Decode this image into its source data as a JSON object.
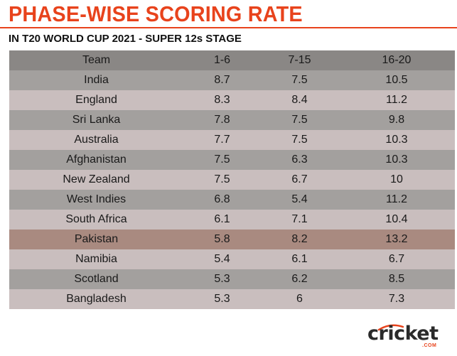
{
  "title": "PHASE-WISE SCORING RATE",
  "subtitle": "IN T20 WORLD CUP 2021 - SUPER 12s STAGE",
  "colors": {
    "accent": "#e8431c",
    "header_row": "#8a8785",
    "row_dark": "#a3a09e",
    "row_light": "#c9bebe",
    "highlight_row": "#a98a80"
  },
  "logo": {
    "word": "cricket",
    "suffix": ".COM"
  },
  "chart_data": {
    "type": "table",
    "title": "PHASE-WISE SCORING RATE",
    "subtitle": "IN T20 WORLD CUP 2021 - SUPER 12s STAGE",
    "columns": [
      "Team",
      "1-6",
      "7-15",
      "16-20"
    ],
    "rows": [
      [
        "India",
        "8.7",
        "7.5",
        "10.5"
      ],
      [
        "England",
        "8.3",
        "8.4",
        "11.2"
      ],
      [
        "Sri Lanka",
        "7.8",
        "7.5",
        "9.8"
      ],
      [
        "Australia",
        "7.7",
        "7.5",
        "10.3"
      ],
      [
        "Afghanistan",
        "7.5",
        "6.3",
        "10.3"
      ],
      [
        "New Zealand",
        "7.5",
        "6.7",
        "10"
      ],
      [
        "West Indies",
        "6.8",
        "5.4",
        "11.2"
      ],
      [
        "South Africa",
        "6.1",
        "7.1",
        "10.4"
      ],
      [
        "Pakistan",
        "5.8",
        "8.2",
        "13.2"
      ],
      [
        "Namibia",
        "5.4",
        "6.1",
        "6.7"
      ],
      [
        "Scotland",
        "5.3",
        "6.2",
        "8.5"
      ],
      [
        "Bangladesh",
        "5.3",
        "6",
        "7.3"
      ]
    ],
    "highlighted_team": "Pakistan"
  }
}
